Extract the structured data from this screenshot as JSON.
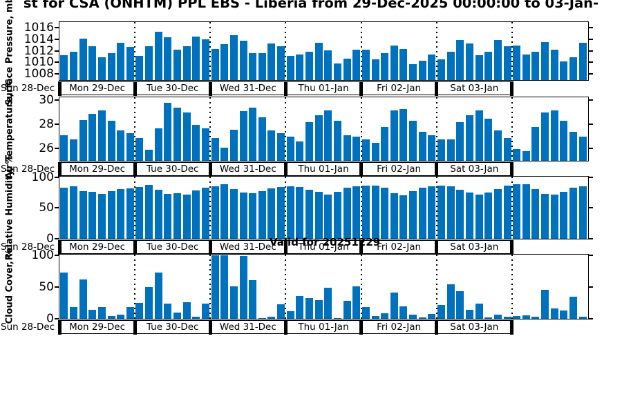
{
  "figure": {
    "title": "st for CSA (ONHTM) PPL EBS  - Liberia from 29-Dec-2025 00:00:00 to 03-Jan-",
    "annotation": "Valid for 20251229",
    "bar_color": "#0072BD",
    "pre_day_label": "Sun 28-Dec",
    "day_labels": [
      "Mon 29-Dec",
      "Tue 30-Dec",
      "Wed 31-Dec",
      "Thu 01-Jan",
      "Fri 02-Jan",
      "Sat 03-Jan"
    ]
  },
  "chart_data": [
    {
      "type": "bar",
      "ylabel": "Surface Pressure, mb",
      "yticks": [
        1008,
        1010,
        1012,
        1014,
        1016
      ],
      "ylim": [
        1007,
        1016.9
      ],
      "x_day_labels": [
        "Mon 29-Dec",
        "Tue 30-Dec",
        "Wed 31-Dec",
        "Thu 01-Jan",
        "Fri 02-Jan",
        "Sat 03-Jan"
      ],
      "bars_per_day": 8,
      "values": [
        1011.3,
        1011.9,
        1014.1,
        1012.9,
        1010.9,
        1011.6,
        1013.5,
        1012.7,
        1011.2,
        1012.8,
        1015.3,
        1014.4,
        1012.2,
        1012.8,
        1014.5,
        1014.0,
        1012.4,
        1013.2,
        1014.8,
        1013.8,
        1011.7,
        1011.6,
        1013.3,
        1012.9,
        1011.2,
        1011.4,
        1011.9,
        1013.5,
        1012.1,
        1009.9,
        1010.7,
        1012.3,
        1012.3,
        1010.6,
        1011.6,
        1013.0,
        1012.4,
        1009.8,
        1010.3,
        1011.4,
        1010.6,
        1011.9,
        1013.9,
        1013.3,
        1011.3,
        1011.9,
        1013.9,
        1012.9,
        1013.0,
        1011.4,
        1011.9,
        1013.6,
        1012.3,
        1010.2,
        1010.9,
        1013.5
      ]
    },
    {
      "type": "bar",
      "ylabel": "Air Temperature, °C",
      "yticks": [
        26,
        28,
        30
      ],
      "ylim": [
        25,
        30.2
      ],
      "x_day_labels": [
        "Mon 29-Dec",
        "Tue 30-Dec",
        "Wed 31-Dec",
        "Thu 01-Jan",
        "Fri 02-Jan",
        "Sat 03-Jan"
      ],
      "bars_per_day": 8,
      "values": [
        27.1,
        26.8,
        28.4,
        28.9,
        29.2,
        28.3,
        27.5,
        27.3,
        26.9,
        25.9,
        27.7,
        29.8,
        29.4,
        29.0,
        28.0,
        27.7,
        26.9,
        26.1,
        27.6,
        29.1,
        29.4,
        28.6,
        27.5,
        27.3,
        27.0,
        26.6,
        28.2,
        28.8,
        29.2,
        28.3,
        27.1,
        27.0,
        26.8,
        26.5,
        27.8,
        29.2,
        29.3,
        28.3,
        27.4,
        27.1,
        26.8,
        26.8,
        28.2,
        28.8,
        29.2,
        28.5,
        27.5,
        26.9,
        26.0,
        25.8,
        27.8,
        29.0,
        29.2,
        28.3,
        27.4,
        27.0
      ]
    },
    {
      "type": "bar",
      "ylabel": "Relative Humidity, %",
      "yticks": [
        0,
        50,
        100
      ],
      "ylim": [
        0,
        100
      ],
      "x_day_labels": [
        "Mon 29-Dec",
        "Tue 30-Dec",
        "Wed 31-Dec",
        "Thu 01-Jan",
        "Fri 02-Jan",
        "Sat 03-Jan"
      ],
      "bars_per_day": 8,
      "values": [
        83,
        85,
        77,
        76,
        73,
        77,
        81,
        82,
        84,
        88,
        80,
        73,
        74,
        72,
        79,
        83,
        85,
        89,
        81,
        75,
        74,
        77,
        82,
        84,
        85,
        84,
        80,
        76,
        72,
        76,
        83,
        85,
        87,
        87,
        83,
        74,
        71,
        77,
        83,
        85,
        86,
        85,
        80,
        75,
        72,
        75,
        81,
        86,
        89,
        89,
        81,
        73,
        72,
        76,
        83,
        85
      ]
    },
    {
      "type": "bar",
      "ylabel": "Cloud Cover, %",
      "yticks": [
        0,
        50,
        100
      ],
      "ylim": [
        0,
        100
      ],
      "x_day_labels": [
        "Mon 29-Dec",
        "Tue 30-Dec",
        "Wed 31-Dec",
        "Thu 01-Jan",
        "Fri 02-Jan",
        "Sat 03-Jan"
      ],
      "bars_per_day": 8,
      "values": [
        73,
        19,
        62,
        14,
        18,
        4,
        7,
        19,
        25,
        50,
        73,
        24,
        10,
        26,
        3,
        24,
        100,
        100,
        51,
        99,
        61,
        1,
        3,
        23,
        12,
        36,
        33,
        29,
        49,
        1,
        28,
        51,
        18,
        4,
        9,
        41,
        20,
        7,
        2,
        8,
        22,
        54,
        43,
        14,
        24,
        2,
        6,
        3,
        4,
        5,
        3,
        46,
        16,
        13,
        35,
        3
      ]
    }
  ]
}
